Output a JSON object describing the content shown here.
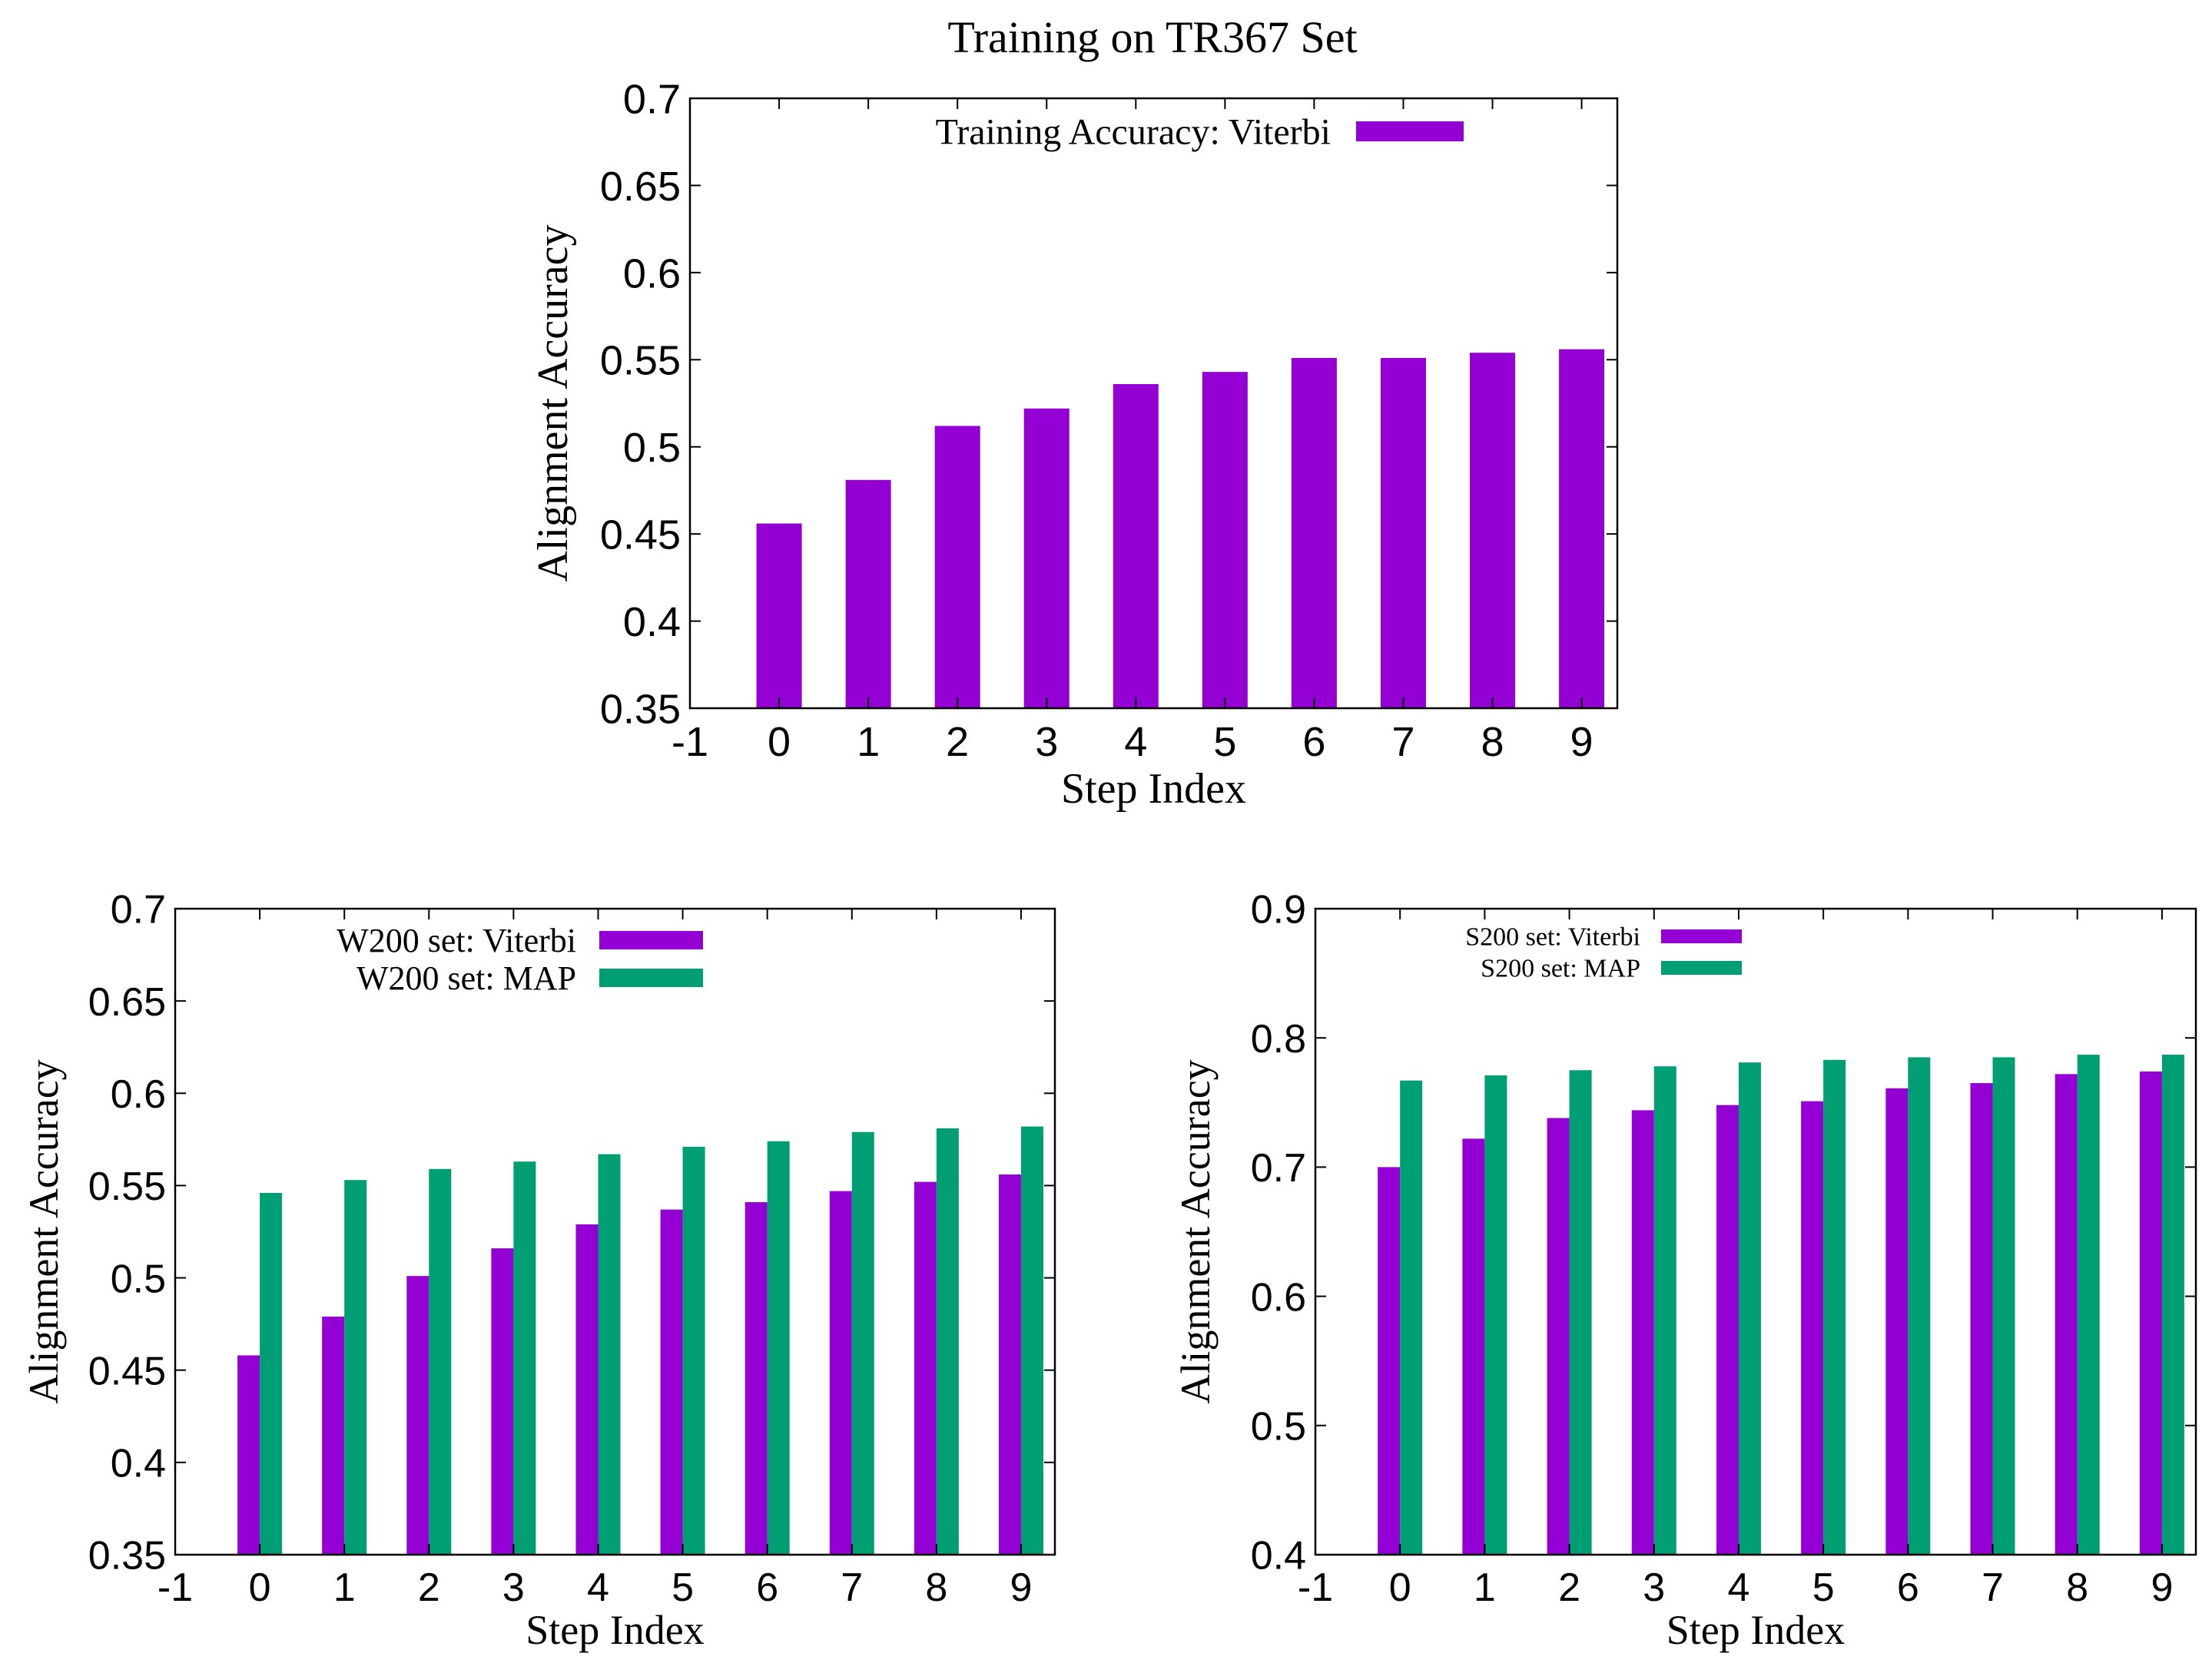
{
  "figure_title": "Training on TR367 Set",
  "colors": {
    "viterbi": "#9400D3",
    "map": "#009E73",
    "axis": "#000000"
  },
  "chart_data": [
    {
      "id": "tr367",
      "type": "bar",
      "title": "Training on TR367 Set",
      "xlabel": "Step Index",
      "ylabel": "Alignment Accuracy",
      "xlim": [
        -1,
        9.4
      ],
      "ylim": [
        0.35,
        0.7
      ],
      "yticks": [
        "0.35",
        "0.4",
        "0.45",
        "0.5",
        "0.55",
        "0.6",
        "0.65",
        "0.7"
      ],
      "xticks": [
        "-1",
        "0",
        "1",
        "2",
        "3",
        "4",
        "5",
        "6",
        "7",
        "8",
        "9"
      ],
      "categories": [
        0,
        1,
        2,
        3,
        4,
        5,
        6,
        7,
        8,
        9
      ],
      "legend_position": "top-center",
      "series": [
        {
          "name": "Training Accuracy: Viterbi",
          "color": "#9400D3",
          "values": [
            0.456,
            0.481,
            0.512,
            0.522,
            0.536,
            0.543,
            0.551,
            0.551,
            0.554,
            0.556
          ]
        }
      ]
    },
    {
      "id": "w200",
      "type": "bar",
      "title": "",
      "xlabel": "Step Index",
      "ylabel": "Alignment Accuracy",
      "xlim": [
        -1,
        9.4
      ],
      "ylim": [
        0.35,
        0.7
      ],
      "yticks": [
        "0.35",
        "0.4",
        "0.45",
        "0.5",
        "0.55",
        "0.6",
        "0.65",
        "0.7"
      ],
      "xticks": [
        "-1",
        "0",
        "1",
        "2",
        "3",
        "4",
        "5",
        "6",
        "7",
        "8",
        "9"
      ],
      "categories": [
        0,
        1,
        2,
        3,
        4,
        5,
        6,
        7,
        8,
        9
      ],
      "legend_position": "top-center",
      "series": [
        {
          "name": "W200 set: Viterbi",
          "color": "#9400D3",
          "values": [
            0.458,
            0.479,
            0.501,
            0.516,
            0.529,
            0.537,
            0.541,
            0.547,
            0.552,
            0.556
          ]
        },
        {
          "name": "W200 set: MAP",
          "color": "#009E73",
          "values": [
            0.546,
            0.553,
            0.559,
            0.563,
            0.567,
            0.571,
            0.574,
            0.579,
            0.581,
            0.582
          ]
        }
      ]
    },
    {
      "id": "s200",
      "type": "bar",
      "title": "",
      "xlabel": "Step Index",
      "ylabel": "Alignment Accuracy",
      "xlim": [
        -1,
        9.4
      ],
      "ylim": [
        0.4,
        0.9
      ],
      "yticks": [
        "0.4",
        "0.5",
        "0.6",
        "0.7",
        "0.8",
        "0.9"
      ],
      "xticks": [
        "-1",
        "0",
        "1",
        "2",
        "3",
        "4",
        "5",
        "6",
        "7",
        "8",
        "9"
      ],
      "categories": [
        0,
        1,
        2,
        3,
        4,
        5,
        6,
        7,
        8,
        9
      ],
      "legend_position": "top-left",
      "series": [
        {
          "name": "S200 set: Viterbi",
          "color": "#9400D3",
          "values": [
            0.7,
            0.722,
            0.738,
            0.744,
            0.748,
            0.751,
            0.761,
            0.765,
            0.772,
            0.774
          ]
        },
        {
          "name": "S200 set: MAP",
          "color": "#009E73",
          "values": [
            0.767,
            0.771,
            0.775,
            0.778,
            0.781,
            0.783,
            0.785,
            0.785,
            0.787,
            0.787
          ]
        }
      ]
    }
  ]
}
